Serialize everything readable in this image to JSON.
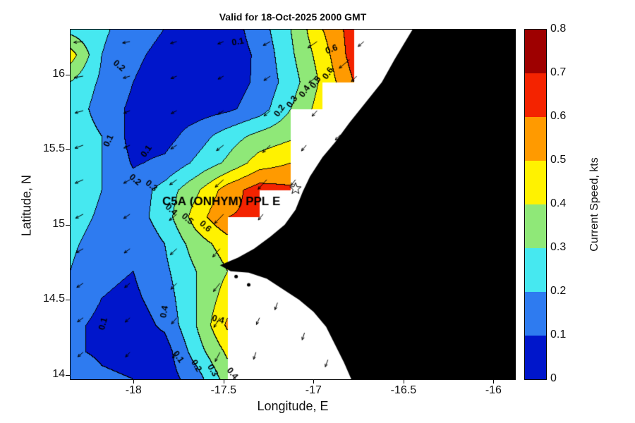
{
  "chart_data": {
    "type": "heatmap",
    "title": "Valid for 18-Oct-2025 2000 GMT",
    "xlabel": "Longitude, E",
    "ylabel": "Latitude, N",
    "colorbar_label": "Current Speed, kts",
    "xlim": [
      -18.35,
      -15.88
    ],
    "ylim": [
      13.97,
      16.3
    ],
    "xticks": [
      -18,
      -17.5,
      -17,
      -16.5,
      -16
    ],
    "yticks": [
      14,
      14.5,
      15,
      15.5,
      16
    ],
    "colorbar_ticks": [
      0,
      0.1,
      0.2,
      0.3,
      0.4,
      0.5,
      0.6,
      0.7,
      0.8
    ],
    "band_colors": [
      "#0016CB",
      "#2E7BF0",
      "#46E8F0",
      "#8FE878",
      "#FFF200",
      "#FF9A00",
      "#F42300",
      "#9E0000"
    ],
    "band_width_kts": 0.1,
    "lons": [
      -18.35,
      -18.175,
      -18.0,
      -17.825,
      -17.65,
      -17.475,
      -17.3,
      -17.125,
      -16.95,
      -16.775,
      -16.6,
      -16.425,
      -16.25,
      -16.075,
      -15.9
    ],
    "lats": [
      16.31,
      16.13,
      15.95,
      15.77,
      15.59,
      15.41,
      15.23,
      15.05,
      14.87,
      14.69,
      14.51,
      14.33,
      14.15,
      13.97
    ],
    "speed_kts": [
      [
        0.25,
        0.22,
        0.15,
        0.1,
        0.05,
        0.05,
        0.15,
        0.3,
        0.5,
        0.65,
        null,
        null,
        null,
        null,
        null
      ],
      [
        0.45,
        0.2,
        0.12,
        0.07,
        0.04,
        0.04,
        0.12,
        0.28,
        0.45,
        0.65,
        null,
        null,
        null,
        null,
        null
      ],
      [
        0.3,
        0.18,
        0.1,
        0.05,
        0.04,
        0.05,
        0.12,
        0.25,
        0.42,
        0.6,
        null,
        null,
        null,
        null,
        null
      ],
      [
        0.27,
        0.15,
        0.08,
        0.05,
        0.05,
        0.08,
        0.15,
        0.3,
        0.45,
        null,
        null,
        null,
        null,
        null,
        null
      ],
      [
        0.28,
        0.2,
        0.06,
        0.06,
        0.15,
        0.25,
        0.33,
        0.38,
        null,
        null,
        null,
        null,
        null,
        null,
        null
      ],
      [
        0.28,
        0.2,
        0.09,
        0.12,
        0.22,
        0.32,
        0.45,
        0.5,
        null,
        null,
        null,
        null,
        null,
        null,
        null
      ],
      [
        0.28,
        0.2,
        0.14,
        0.24,
        0.38,
        0.55,
        0.65,
        0.62,
        null,
        null,
        null,
        null,
        null,
        null,
        null
      ],
      [
        0.25,
        0.18,
        0.15,
        0.25,
        0.45,
        0.6,
        0.62,
        null,
        null,
        null,
        null,
        null,
        null,
        null,
        null
      ],
      [
        0.22,
        0.15,
        0.12,
        0.2,
        0.35,
        0.45,
        null,
        null,
        null,
        null,
        null,
        null,
        null,
        null,
        null
      ],
      [
        0.2,
        0.12,
        0.1,
        0.18,
        0.3,
        0.4,
        null,
        null,
        null,
        null,
        null,
        null,
        null,
        null,
        null
      ],
      [
        0.15,
        0.1,
        0.08,
        0.15,
        0.3,
        0.45,
        null,
        null,
        null,
        null,
        null,
        null,
        null,
        null,
        null
      ],
      [
        0.12,
        0.08,
        0.05,
        0.12,
        0.3,
        0.52,
        null,
        null,
        null,
        null,
        null,
        null,
        null,
        null,
        null
      ],
      [
        0.12,
        0.08,
        0.06,
        0.05,
        0.25,
        0.42,
        null,
        null,
        null,
        null,
        null,
        null,
        null,
        null,
        null
      ],
      [
        0.2,
        0.12,
        0.1,
        0.05,
        0.15,
        0.35,
        null,
        null,
        null,
        null,
        null,
        null,
        null,
        null,
        null
      ]
    ],
    "coastline": [
      [
        -16.45,
        16.3
      ],
      [
        -16.55,
        16.1
      ],
      [
        -16.62,
        15.95
      ],
      [
        -16.72,
        15.8
      ],
      [
        -16.8,
        15.68
      ],
      [
        -16.88,
        15.55
      ],
      [
        -16.95,
        15.45
      ],
      [
        -17.02,
        15.32
      ],
      [
        -17.06,
        15.22
      ],
      [
        -17.1,
        15.1
      ],
      [
        -17.16,
        15.0
      ],
      [
        -17.24,
        14.92
      ],
      [
        -17.33,
        14.84
      ],
      [
        -17.42,
        14.78
      ],
      [
        -17.52,
        14.73
      ],
      [
        -17.46,
        14.69
      ],
      [
        -17.36,
        14.68
      ],
      [
        -17.26,
        14.64
      ],
      [
        -17.17,
        14.57
      ],
      [
        -17.08,
        14.5
      ],
      [
        -17.0,
        14.42
      ],
      [
        -16.93,
        14.32
      ],
      [
        -16.88,
        14.2
      ],
      [
        -16.83,
        14.08
      ],
      [
        -16.79,
        13.97
      ],
      [
        -15.88,
        13.97
      ],
      [
        -15.88,
        16.3
      ]
    ],
    "islets": [
      [
        -17.43,
        14.655
      ],
      [
        -17.36,
        14.6
      ]
    ],
    "station": {
      "label": "C5A (ONHYM) PPL E",
      "lon": -17.1,
      "lat": 15.24,
      "label_lon": -17.84,
      "label_lat": 15.13
    },
    "contour_labels": [
      {
        "text": "0.1",
        "lon": -17.42,
        "lat": 16.22,
        "rot": -10
      },
      {
        "text": "0.2",
        "lon": -18.08,
        "lat": 16.06,
        "rot": 40
      },
      {
        "text": "0.1",
        "lon": -18.14,
        "lat": 15.56,
        "rot": -65
      },
      {
        "text": "0.1",
        "lon": -17.93,
        "lat": 15.49,
        "rot": -55
      },
      {
        "text": "0.2",
        "lon": -17.19,
        "lat": 15.76,
        "rot": -55
      },
      {
        "text": "0.3",
        "lon": -17.12,
        "lat": 15.82,
        "rot": -55
      },
      {
        "text": "0.4",
        "lon": -17.05,
        "lat": 15.89,
        "rot": -55
      },
      {
        "text": "0.5",
        "lon": -16.99,
        "lat": 15.95,
        "rot": -55
      },
      {
        "text": "0.6",
        "lon": -16.92,
        "lat": 16.01,
        "rot": -55
      },
      {
        "text": "0.6",
        "lon": -16.9,
        "lat": 16.17,
        "rot": -20
      },
      {
        "text": "0.2",
        "lon": -17.99,
        "lat": 15.3,
        "rot": 40
      },
      {
        "text": "0.3",
        "lon": -17.9,
        "lat": 15.26,
        "rot": 40
      },
      {
        "text": "0.4",
        "lon": -17.79,
        "lat": 15.1,
        "rot": 42
      },
      {
        "text": "0.5",
        "lon": -17.7,
        "lat": 15.04,
        "rot": 42
      },
      {
        "text": "0.6",
        "lon": -17.6,
        "lat": 14.99,
        "rot": 42
      },
      {
        "text": "0.4",
        "lon": -17.83,
        "lat": 14.42,
        "rot": -80
      },
      {
        "text": "0.1",
        "lon": -18.17,
        "lat": 14.34,
        "rot": -75
      },
      {
        "text": "0.1",
        "lon": -17.75,
        "lat": 14.12,
        "rot": 55
      },
      {
        "text": "0.2",
        "lon": -17.65,
        "lat": 14.06,
        "rot": 60
      },
      {
        "text": "0.3",
        "lon": -17.56,
        "lat": 14.03,
        "rot": 60
      },
      {
        "text": "0.4",
        "lon": -17.45,
        "lat": 14.01,
        "rot": 50
      },
      {
        "text": "0.4",
        "lon": -17.53,
        "lat": 14.37,
        "rot": 15
      }
    ],
    "arrows": [
      [
        -18.28,
        16.22,
        185
      ],
      [
        -18.02,
        16.22,
        190
      ],
      [
        -17.76,
        16.22,
        196
      ],
      [
        -17.5,
        16.22,
        202
      ],
      [
        -17.24,
        16.22,
        208
      ],
      [
        -16.98,
        16.22,
        214
      ],
      [
        -16.72,
        16.22,
        220
      ],
      [
        -18.28,
        15.99,
        190
      ],
      [
        -18.02,
        15.99,
        196
      ],
      [
        -17.76,
        15.99,
        202
      ],
      [
        -17.5,
        15.99,
        208
      ],
      [
        -17.24,
        15.99,
        214
      ],
      [
        -16.98,
        15.99,
        220
      ],
      [
        -16.76,
        15.99,
        226
      ],
      [
        -18.28,
        15.76,
        196
      ],
      [
        -18.02,
        15.76,
        202
      ],
      [
        -17.76,
        15.76,
        208
      ],
      [
        -17.5,
        15.76,
        214
      ],
      [
        -17.24,
        15.76,
        220
      ],
      [
        -16.98,
        15.76,
        228
      ],
      [
        -18.28,
        15.53,
        200
      ],
      [
        -18.02,
        15.53,
        206
      ],
      [
        -17.76,
        15.53,
        212
      ],
      [
        -17.5,
        15.53,
        218
      ],
      [
        -17.24,
        15.53,
        224
      ],
      [
        -17.04,
        15.53,
        230
      ],
      [
        -18.28,
        15.3,
        204
      ],
      [
        -18.02,
        15.3,
        210
      ],
      [
        -17.76,
        15.3,
        216
      ],
      [
        -17.5,
        15.3,
        222
      ],
      [
        -17.26,
        15.3,
        228
      ],
      [
        -17.1,
        15.3,
        232
      ],
      [
        -18.28,
        15.07,
        208
      ],
      [
        -18.02,
        15.07,
        214
      ],
      [
        -17.76,
        15.07,
        220
      ],
      [
        -17.5,
        15.07,
        226
      ],
      [
        -17.28,
        15.07,
        230
      ],
      [
        -18.28,
        14.84,
        210
      ],
      [
        -18.02,
        14.84,
        217
      ],
      [
        -17.76,
        14.84,
        223
      ],
      [
        -17.52,
        14.84,
        229
      ],
      [
        -18.28,
        14.61,
        213
      ],
      [
        -18.02,
        14.61,
        219
      ],
      [
        -17.76,
        14.61,
        226
      ],
      [
        -17.52,
        14.61,
        232
      ],
      [
        -18.28,
        14.38,
        216
      ],
      [
        -18.02,
        14.38,
        223
      ],
      [
        -17.76,
        14.38,
        230
      ],
      [
        -17.52,
        14.38,
        238
      ],
      [
        -17.3,
        14.38,
        246
      ],
      [
        -18.28,
        14.15,
        220
      ],
      [
        -18.02,
        14.15,
        227
      ],
      [
        -17.76,
        14.15,
        234
      ],
      [
        -17.52,
        14.15,
        243
      ],
      [
        -17.32,
        14.15,
        252
      ],
      [
        -16.85,
        15.6,
        226
      ],
      [
        -16.95,
        15.2,
        230
      ],
      [
        -17.15,
        14.95,
        235
      ],
      [
        -17.2,
        14.48,
        250
      ],
      [
        -17.05,
        14.28,
        252
      ],
      [
        -16.92,
        14.1,
        250
      ],
      [
        -16.8,
        16.1,
        220
      ]
    ]
  }
}
